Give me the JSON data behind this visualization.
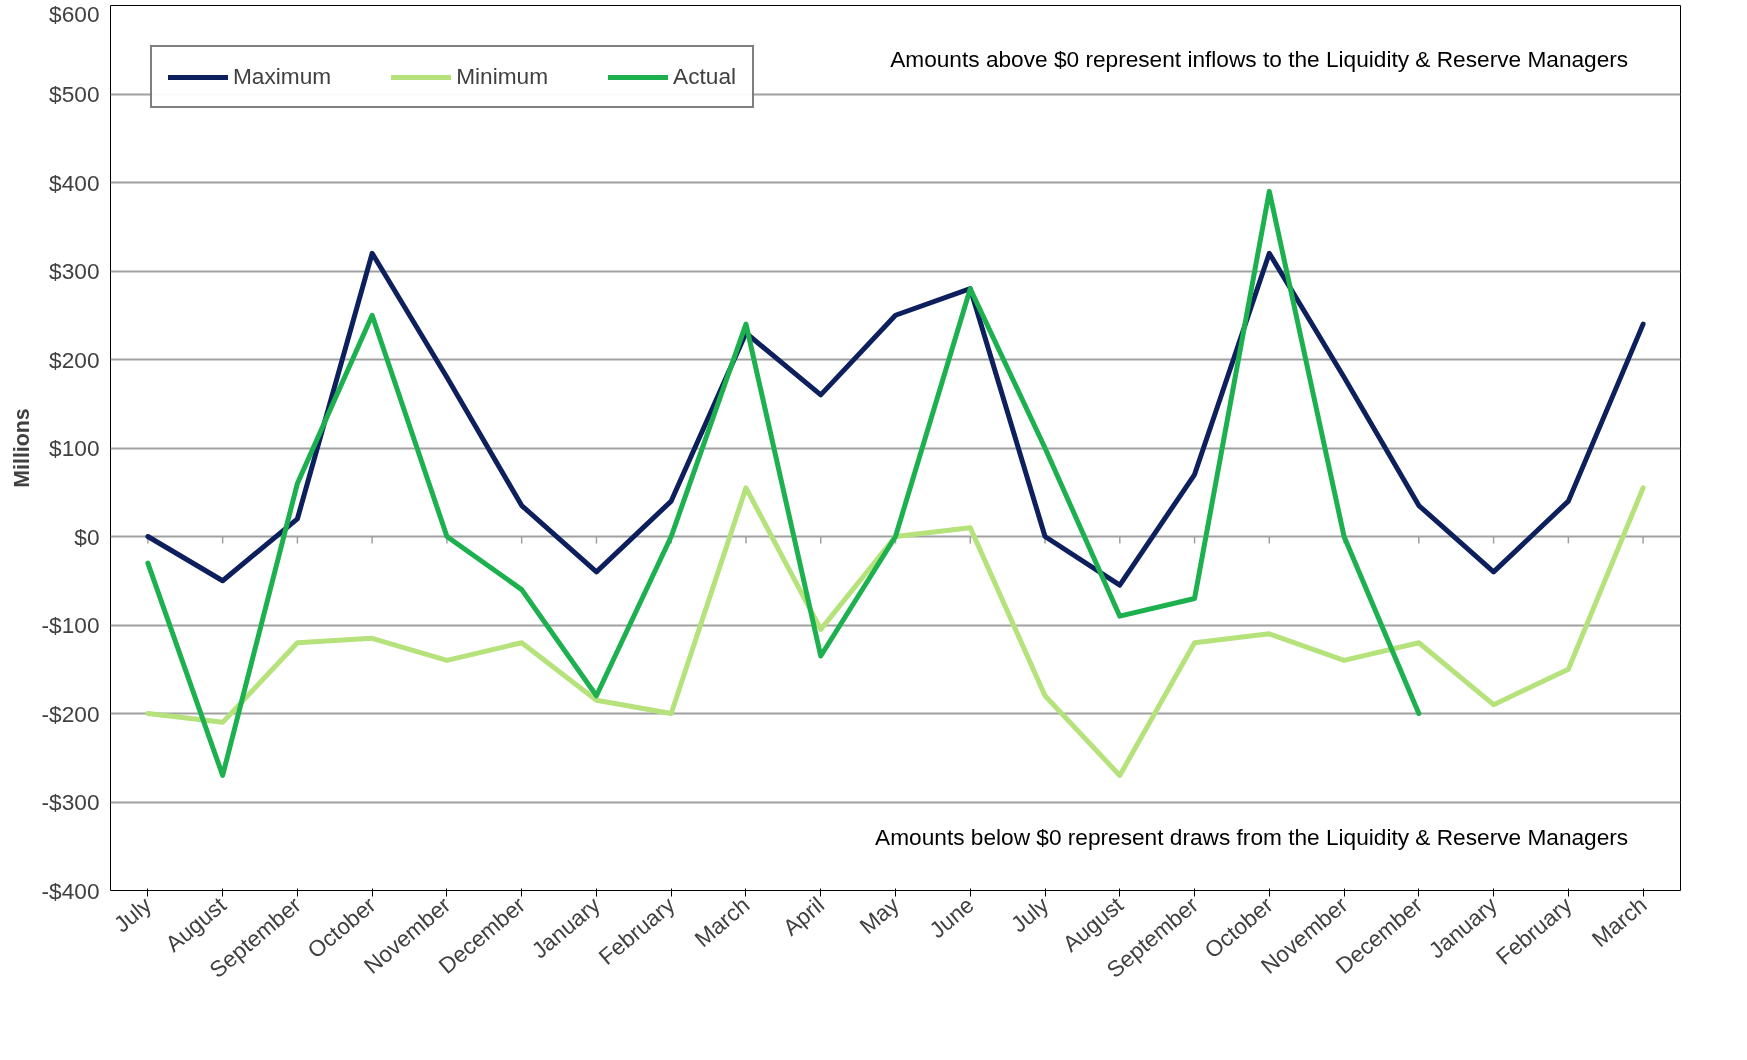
{
  "chart_data": {
    "type": "line",
    "ylabel": "Millions",
    "categories": [
      "July",
      "August",
      "September",
      "October",
      "November",
      "December",
      "January",
      "February",
      "March",
      "April",
      "May",
      "June",
      "July",
      "August",
      "September",
      "October",
      "November",
      "December",
      "January",
      "February",
      "March"
    ],
    "series": [
      {
        "name": "Maximum",
        "color": "#0d1f5c",
        "values": [
          0,
          -50,
          20,
          320,
          180,
          35,
          -40,
          40,
          230,
          160,
          250,
          280,
          0,
          -55,
          70,
          320,
          180,
          35,
          -40,
          40,
          240
        ]
      },
      {
        "name": "Minimum",
        "color": "#b5e27a",
        "values": [
          -200,
          -210,
          -120,
          -115,
          -140,
          -120,
          -185,
          -200,
          55,
          -105,
          0,
          10,
          -180,
          -270,
          -120,
          -110,
          -140,
          -120,
          -190,
          -150,
          55
        ]
      },
      {
        "name": "Actual",
        "color": "#1db04f",
        "values": [
          -30,
          -270,
          60,
          250,
          0,
          -60,
          -180,
          0,
          240,
          -135,
          0,
          280,
          100,
          -90,
          -70,
          390,
          0,
          -200,
          null,
          null,
          null
        ]
      }
    ],
    "ylim": [
      -400,
      600
    ],
    "yticks": [
      {
        "value": -400,
        "label": "-$400"
      },
      {
        "value": -300,
        "label": "-$300"
      },
      {
        "value": -200,
        "label": "-$200"
      },
      {
        "value": -100,
        "label": "-$100"
      },
      {
        "value": 0,
        "label": "$0"
      },
      {
        "value": 100,
        "label": "$100"
      },
      {
        "value": 200,
        "label": "$200"
      },
      {
        "value": 300,
        "label": "$300"
      },
      {
        "value": 400,
        "label": "$400"
      },
      {
        "value": 500,
        "label": "$500"
      },
      {
        "value": 600,
        "label": "$600"
      }
    ],
    "grid": "y",
    "legend": "top left",
    "line_style": "solid",
    "marker": "none",
    "annotations": [
      "Amounts above $0 represent inflows to the Liquidity & Reserve Managers",
      "Amounts below $0 represent draws from the Liquidity & Reserve Managers"
    ]
  }
}
